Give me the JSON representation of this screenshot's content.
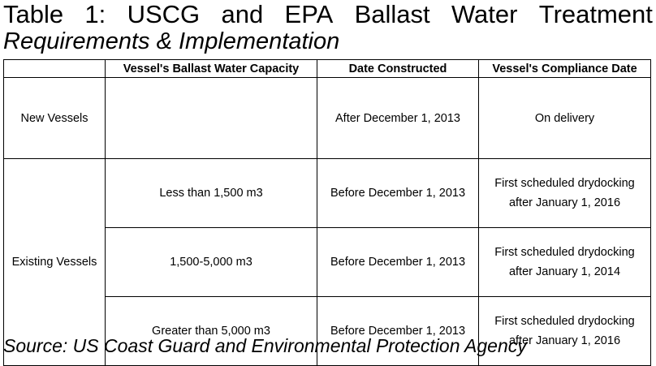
{
  "title": {
    "words": [
      "Table",
      "1:",
      "USCG",
      "and",
      "EPA",
      "Ballast",
      "Water",
      "Treatment"
    ],
    "line2": "Requirements & Implementation"
  },
  "table": {
    "headers": [
      "",
      "Vessel's Ballast Water Capacity",
      "Date Constructed",
      "Vessel's Compliance Date"
    ],
    "new_vessels": {
      "label": "New Vessels",
      "capacity": "",
      "date_constructed": "After December 1, 2013",
      "compliance": "On delivery"
    },
    "existing_vessels": {
      "label": "Existing Vessels",
      "rows": [
        {
          "capacity": "Less than 1,500 m3",
          "date_constructed": "Before December 1, 2013",
          "compliance_line1": "First scheduled drydocking",
          "compliance_line2": "after January 1, 2016"
        },
        {
          "capacity": "1,500-5,000 m3",
          "date_constructed": "Before December 1, 2013",
          "compliance_line1": "First scheduled drydocking",
          "compliance_line2": "after January 1, 2014"
        },
        {
          "capacity": "Greater than 5,000 m3",
          "date_constructed": "Before December 1, 2013",
          "compliance_line1": "First scheduled drydocking",
          "compliance_line2": "after January 1, 2016"
        }
      ]
    }
  },
  "source": "Source:  US Coast Guard and Environmental Protection Agency"
}
